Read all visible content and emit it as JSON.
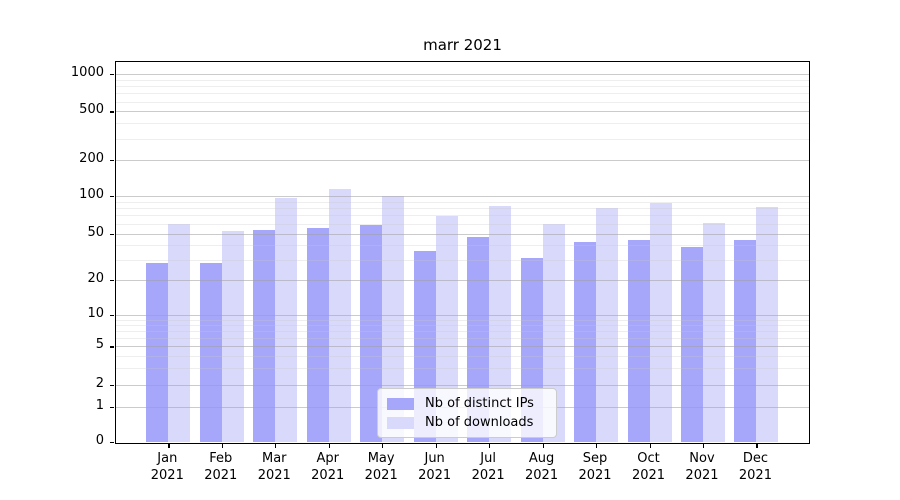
{
  "title": "marr 2021",
  "chart_data": {
    "type": "bar",
    "title": "marr 2021",
    "x_months": [
      "Jan",
      "Feb",
      "Mar",
      "Apr",
      "May",
      "Jun",
      "Jul",
      "Aug",
      "Sep",
      "Oct",
      "Nov",
      "Dec"
    ],
    "x_year": "2021",
    "series": [
      {
        "name": "Nb of distinct IPs",
        "color": "#a6a6fa",
        "values": [
          28,
          28,
          54,
          56,
          59,
          36,
          47,
          31,
          43,
          44,
          39,
          44
        ]
      },
      {
        "name": "Nb of downloads",
        "color": "#d9d9fc",
        "values": [
          60,
          53,
          96,
          115,
          100,
          69,
          83,
          60,
          80,
          88,
          61,
          82
        ]
      }
    ],
    "y_ticks": [
      0,
      1,
      2,
      5,
      10,
      20,
      50,
      100,
      200,
      500,
      1000
    ],
    "y_scale": "symlog",
    "ylim": [
      0,
      1250
    ],
    "grid": true,
    "legend_position": "lower center inside plot",
    "axis_color": "#000000",
    "major_grid_color": "#c9c9c9",
    "minor_grid_color": "#ededed"
  }
}
